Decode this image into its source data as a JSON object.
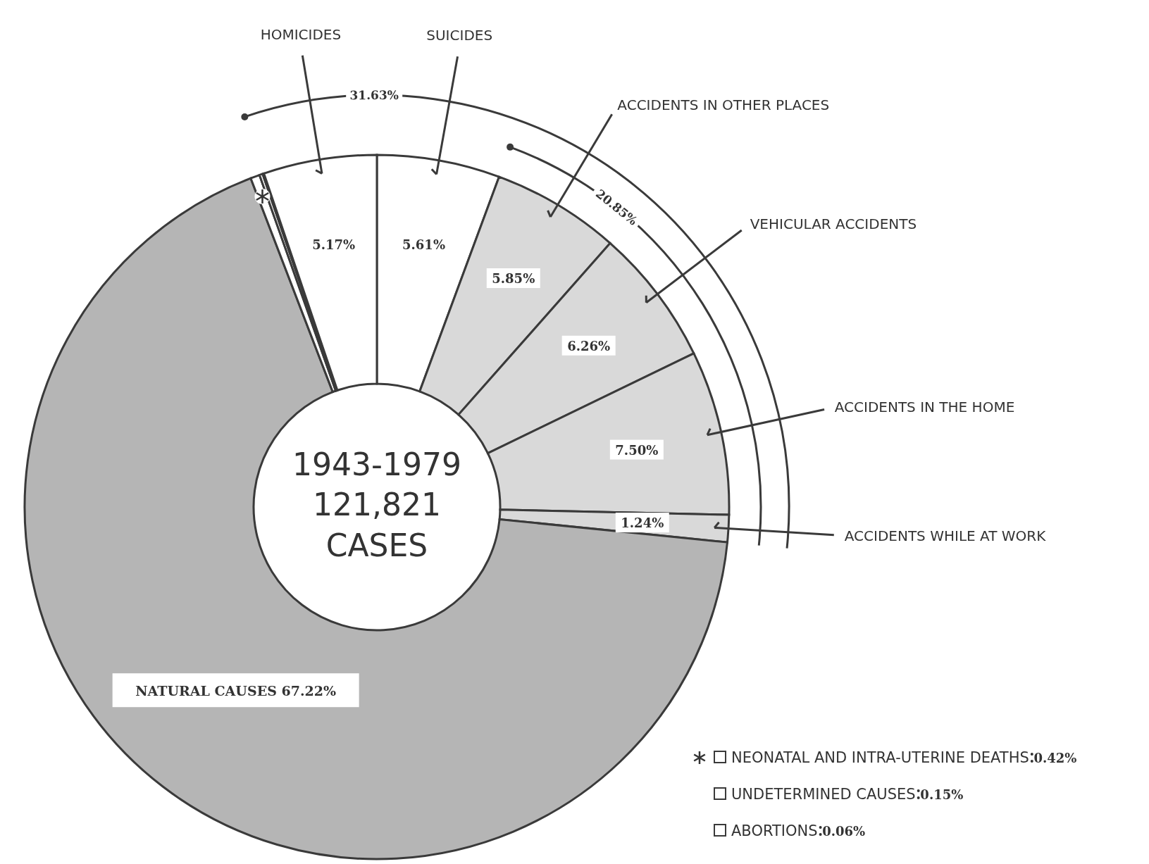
{
  "chart_data": {
    "type": "donut",
    "categories": [
      "SUICIDES",
      "ACCIDENTS IN OTHER PLACES",
      "VEHICULAR ACCIDENTS",
      "ACCIDENTS IN THE HOME",
      "ACCIDENTS WHILE AT WORK",
      "NATURAL CAUSES",
      "NEONATAL AND INTRA-UTERINE DEATHS",
      "UNDETERMINED CAUSES",
      "ABORTIONS",
      "HOMICIDES"
    ],
    "values": [
      5.61,
      5.85,
      6.26,
      7.5,
      1.24,
      67.22,
      0.42,
      0.15,
      0.06,
      5.17
    ],
    "value_labels": [
      "5.61%",
      "5.85%",
      "6.26%",
      "7.50%",
      "1.24%",
      "67.22%",
      "0.42%",
      "0.15%",
      "0.06%",
      "5.17%"
    ],
    "colors": [
      "#ffffff",
      "#d9d9d9",
      "#d9d9d9",
      "#d9d9d9",
      "#d9d9d9",
      "#b5b5b5",
      "#ffffff",
      "#ffffff",
      "#ffffff",
      "#ffffff"
    ],
    "legend": "bottom right",
    "annotations": [
      "1943-1979",
      "121,821",
      "CASES",
      "20.85%",
      "31.63%"
    ]
  }
}
